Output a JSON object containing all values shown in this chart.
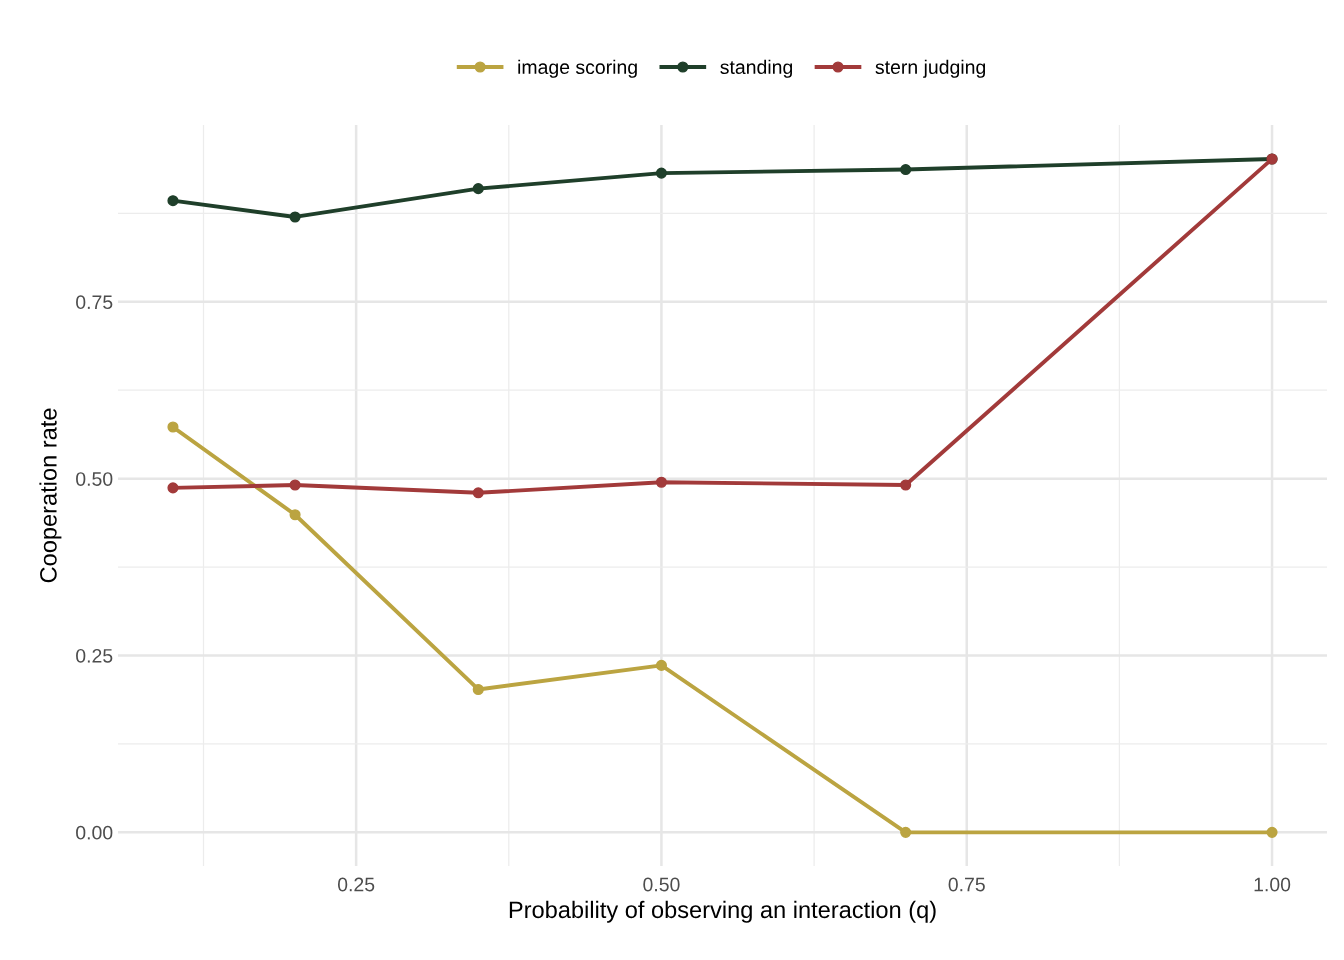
{
  "chart_data": {
    "type": "line",
    "xlabel": "Probability of observing an interaction (q)",
    "ylabel": "Cooperation rate",
    "x": [
      0.1,
      0.2,
      0.35,
      0.5,
      0.7,
      1.0
    ],
    "series": [
      {
        "name": "image scoring",
        "color": "#bba441",
        "values": [
          0.573,
          0.449,
          0.202,
          0.236,
          0,
          0
        ]
      },
      {
        "name": "standing",
        "color": "#1f3f2a",
        "values": [
          0.893,
          0.87,
          0.91,
          0.932,
          0.937,
          0.952
        ]
      },
      {
        "name": "stern judging",
        "color": "#a23a3a",
        "values": [
          0.487,
          0.491,
          0.48,
          0.495,
          0.491,
          0.952
        ]
      }
    ],
    "xlim": [
      0.055,
      1.045
    ],
    "ylim": [
      -0.0476,
      1.0
    ],
    "xticks": [
      {
        "value": 0.125,
        "label": null
      },
      {
        "value": 0.25,
        "label": "0.25"
      },
      {
        "value": 0.375,
        "label": null
      },
      {
        "value": 0.5,
        "label": "0.50"
      },
      {
        "value": 0.625,
        "label": null
      },
      {
        "value": 0.75,
        "label": "0.75"
      },
      {
        "value": 0.875,
        "label": null
      },
      {
        "value": 1.0,
        "label": "1.00"
      }
    ],
    "yticks": [
      {
        "value": 0,
        "label": "0.00"
      },
      {
        "value": 0.125,
        "label": null
      },
      {
        "value": 0.25,
        "label": "0.25"
      },
      {
        "value": 0.375,
        "label": null
      },
      {
        "value": 0.5,
        "label": "0.50"
      },
      {
        "value": 0.625,
        "label": null
      },
      {
        "value": 0.75,
        "label": "0.75"
      },
      {
        "value": 0.875,
        "label": null
      }
    ],
    "grid": true,
    "legend": "top",
    "marker": "circle",
    "line_style": "solid"
  }
}
